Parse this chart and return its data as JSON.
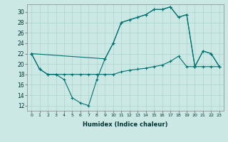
{
  "xlabel": "Humidex (Indice chaleur)",
  "bg_color": "#cce8e4",
  "grid_color": "#b0d8d2",
  "line_color": "#007070",
  "xlim": [
    -0.5,
    23.5
  ],
  "ylim": [
    11,
    31.5
  ],
  "yticks": [
    12,
    14,
    16,
    18,
    20,
    22,
    24,
    26,
    28,
    30
  ],
  "xticks": [
    0,
    1,
    2,
    3,
    4,
    5,
    6,
    7,
    8,
    9,
    10,
    11,
    12,
    13,
    14,
    15,
    16,
    17,
    18,
    19,
    20,
    21,
    22,
    23
  ],
  "series1_x": [
    0,
    1,
    2,
    3,
    4,
    5,
    6,
    7,
    8,
    9,
    10,
    11,
    12,
    13,
    14,
    15,
    16,
    17,
    18,
    19,
    20,
    21,
    22,
    23
  ],
  "series1_y": [
    22,
    19,
    18,
    18,
    17,
    13.5,
    12.5,
    12,
    17,
    21,
    24,
    28,
    28.5,
    29,
    29.5,
    30.5,
    30.5,
    31,
    29,
    29.5,
    19.5,
    22.5,
    22,
    19.5
  ],
  "series2_x": [
    0,
    1,
    2,
    3,
    4,
    5,
    6,
    7,
    8,
    9,
    10,
    11,
    12,
    13,
    14,
    15,
    16,
    17,
    18,
    19,
    20,
    21,
    22,
    23
  ],
  "series2_y": [
    22,
    19,
    18,
    18,
    18,
    18,
    18,
    18,
    18,
    18,
    18,
    18.5,
    18.8,
    19,
    19.2,
    19.5,
    19.8,
    20.5,
    21.5,
    19.5,
    19.5,
    19.5,
    19.5,
    19.5
  ],
  "series3_x": [
    0,
    9,
    10,
    11,
    12,
    13,
    14,
    15,
    16,
    17,
    18,
    19,
    20,
    21,
    22,
    23
  ],
  "series3_y": [
    22,
    21,
    24,
    28,
    28.5,
    29,
    29.5,
    30.5,
    30.5,
    31,
    29,
    29.5,
    19.5,
    22.5,
    22,
    19.5
  ]
}
